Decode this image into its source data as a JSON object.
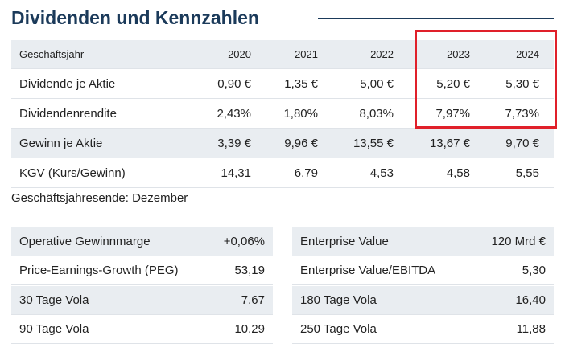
{
  "title": "Dividenden und Kennzahlen",
  "table": {
    "header": [
      "Geschäftsjahr",
      "2020",
      "2021",
      "2022",
      "2023",
      "2024"
    ],
    "rows": [
      [
        "Dividende je Aktie",
        "0,90 €",
        "1,35 €",
        "5,00 €",
        "5,20 €",
        "5,30 €"
      ],
      [
        "Dividendenrendite",
        "2,43%",
        "1,80%",
        "8,03%",
        "7,97%",
        "7,73%"
      ],
      [
        "Gewinn je Aktie",
        "3,39 €",
        "9,96 €",
        "13,55 €",
        "13,67 €",
        "9,70 €"
      ],
      [
        "KGV (Kurs/Gewinn)",
        "14,31",
        "6,79",
        "4,53",
        "4,58",
        "5,55"
      ]
    ]
  },
  "footnote": "Geschäftsjahresende: Dezember",
  "left_table": {
    "rows": [
      [
        "Operative Gewinnmarge",
        "+0,06%"
      ],
      [
        "Price-Earnings-Growth (PEG)",
        "53,19"
      ],
      [
        "30 Tage Vola",
        "7,67"
      ],
      [
        "90 Tage Vola",
        "10,29"
      ]
    ]
  },
  "right_table": {
    "rows": [
      [
        "Enterprise Value",
        "120 Mrd €"
      ],
      [
        "Enterprise Value/EBITDA",
        "5,30"
      ],
      [
        "180 Tage Vola",
        "16,40"
      ],
      [
        "250 Tage Vola",
        "11,88"
      ]
    ]
  }
}
